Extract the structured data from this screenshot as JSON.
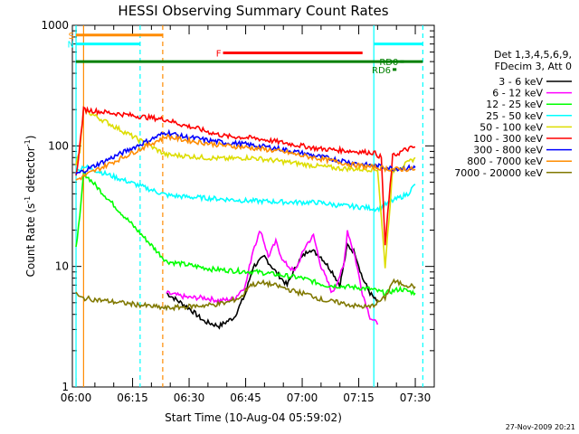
{
  "chart_data": {
    "type": "line",
    "title": "HESSI Observing Summary Count Rates",
    "xlabel": "Start Time (10-Aug-04 05:59:02)",
    "ylabel_main": "Count Rate (s",
    "ylabel_sup": "-1",
    "ylabel_mid": " detector",
    "ylabel_sup2": "-1",
    "ylabel_end": ")",
    "yscale": "log",
    "ylim": [
      1,
      1000
    ],
    "xlim": [
      "05:59:02",
      "07:35:00"
    ],
    "x_tick_labels": [
      "06:00",
      "06:15",
      "06:30",
      "06:45",
      "07:00",
      "07:15",
      "07:30"
    ],
    "x_tick_values_min": [
      0,
      15,
      30,
      45,
      60,
      75,
      90
    ],
    "y_tick_labels": [
      "1",
      "10",
      "100",
      "1000"
    ],
    "y_tick_values": [
      1,
      10,
      100,
      1000
    ],
    "legend_header": [
      "Det 1,3,4,5,6,9,",
      "FDecim 3, Att 0"
    ],
    "legend_position": "right",
    "footer": "27-Nov-2009 20:21",
    "series": [
      {
        "name": "3 - 6 keV",
        "color": "#000000",
        "points": [
          [
            24,
            6
          ],
          [
            30,
            4.5
          ],
          [
            34,
            3.5
          ],
          [
            38,
            3.2
          ],
          [
            42,
            3.8
          ],
          [
            45,
            6
          ],
          [
            47,
            10
          ],
          [
            50,
            12
          ],
          [
            53,
            9
          ],
          [
            56,
            7
          ],
          [
            59,
            11
          ],
          [
            62,
            14
          ],
          [
            65,
            12
          ],
          [
            68,
            9
          ],
          [
            70,
            7
          ],
          [
            72,
            15
          ],
          [
            74,
            13
          ],
          [
            76,
            8
          ],
          [
            78,
            6
          ],
          [
            80,
            5
          ]
        ]
      },
      {
        "name": "6 - 12 keV",
        "color": "#ff00ff",
        "points": [
          [
            24,
            6
          ],
          [
            30,
            5.5
          ],
          [
            34,
            5.5
          ],
          [
            38,
            5.2
          ],
          [
            42,
            5.4
          ],
          [
            45,
            7
          ],
          [
            47,
            14
          ],
          [
            49,
            20
          ],
          [
            51,
            12
          ],
          [
            53,
            16
          ],
          [
            55,
            11
          ],
          [
            58,
            9
          ],
          [
            61,
            15
          ],
          [
            63,
            18
          ],
          [
            65,
            10
          ],
          [
            68,
            6
          ],
          [
            71,
            10
          ],
          [
            72,
            20
          ],
          [
            74,
            12
          ],
          [
            76,
            6
          ],
          [
            78,
            3.8
          ],
          [
            80,
            3.3
          ]
        ]
      },
      {
        "name": "12 - 25 keV",
        "color": "#00ff00",
        "points": [
          [
            0,
            15
          ],
          [
            1,
            25
          ],
          [
            2,
            60
          ],
          [
            24,
            11
          ],
          [
            28,
            10.5
          ],
          [
            32,
            10
          ],
          [
            36,
            9.5
          ],
          [
            42,
            9.2
          ],
          [
            48,
            9
          ],
          [
            54,
            8.5
          ],
          [
            60,
            8
          ],
          [
            66,
            7
          ],
          [
            72,
            6.8
          ],
          [
            78,
            6.5
          ],
          [
            82,
            6
          ],
          [
            86,
            6.5
          ],
          [
            90,
            6
          ]
        ]
      },
      {
        "name": "25 - 50 keV",
        "color": "#00ffff",
        "points": [
          [
            0,
            60
          ],
          [
            2,
            68
          ],
          [
            24,
            39
          ],
          [
            28,
            38
          ],
          [
            34,
            37
          ],
          [
            40,
            36
          ],
          [
            46,
            35
          ],
          [
            52,
            34.5
          ],
          [
            58,
            34
          ],
          [
            64,
            34
          ],
          [
            70,
            32
          ],
          [
            76,
            31
          ],
          [
            80,
            30
          ],
          [
            84,
            35
          ],
          [
            88,
            40
          ],
          [
            90,
            48
          ]
        ]
      },
      {
        "name": "50 - 100 keV",
        "color": "#dddd00",
        "points": [
          [
            0,
            70
          ],
          [
            1,
            90
          ],
          [
            2,
            200
          ],
          [
            24,
            84
          ],
          [
            28,
            83
          ],
          [
            34,
            80
          ],
          [
            40,
            78
          ],
          [
            46,
            80
          ],
          [
            52,
            76
          ],
          [
            58,
            72
          ],
          [
            64,
            68
          ],
          [
            70,
            65
          ],
          [
            76,
            64
          ],
          [
            80,
            64
          ],
          [
            82,
            10
          ],
          [
            84,
            62
          ],
          [
            88,
            72
          ],
          [
            90,
            80
          ]
        ]
      },
      {
        "name": "100 - 300 keV",
        "color": "#ff0000",
        "points": [
          [
            0,
            55
          ],
          [
            1,
            100
          ],
          [
            2,
            200
          ],
          [
            24,
            165
          ],
          [
            28,
            150
          ],
          [
            32,
            140
          ],
          [
            36,
            128
          ],
          [
            40,
            120
          ],
          [
            44,
            118
          ],
          [
            48,
            115
          ],
          [
            52,
            110
          ],
          [
            56,
            105
          ],
          [
            60,
            100
          ],
          [
            64,
            95
          ],
          [
            70,
            92
          ],
          [
            76,
            89
          ],
          [
            79,
            88
          ],
          [
            81,
            80
          ],
          [
            82,
            15
          ],
          [
            84,
            82
          ],
          [
            87,
            92
          ],
          [
            90,
            98
          ]
        ]
      },
      {
        "name": "300 - 800 keV",
        "color": "#0000ff",
        "points": [
          [
            0,
            58
          ],
          [
            2,
            62
          ],
          [
            24,
            130
          ],
          [
            28,
            120
          ],
          [
            32,
            115
          ],
          [
            36,
            110
          ],
          [
            40,
            106
          ],
          [
            44,
            104
          ],
          [
            48,
            100
          ],
          [
            52,
            97
          ],
          [
            56,
            92
          ],
          [
            60,
            87
          ],
          [
            64,
            82
          ],
          [
            68,
            78
          ],
          [
            72,
            74
          ],
          [
            76,
            70
          ],
          [
            80,
            68
          ],
          [
            84,
            65
          ],
          [
            90,
            66
          ]
        ]
      },
      {
        "name": "800 - 7000 keV",
        "color": "#ff8c00",
        "points": [
          [
            0,
            52
          ],
          [
            2,
            56
          ],
          [
            24,
            120
          ],
          [
            28,
            113
          ],
          [
            32,
            108
          ],
          [
            36,
            104
          ],
          [
            40,
            100
          ],
          [
            44,
            98
          ],
          [
            48,
            95
          ],
          [
            52,
            92
          ],
          [
            56,
            88
          ],
          [
            60,
            83
          ],
          [
            64,
            79
          ],
          [
            68,
            75
          ],
          [
            72,
            71
          ],
          [
            76,
            68
          ],
          [
            80,
            66
          ],
          [
            84,
            64
          ],
          [
            90,
            64
          ]
        ]
      },
      {
        "name": "7000 - 20000 keV",
        "color": "#807800",
        "points": [
          [
            0,
            6
          ],
          [
            1,
            5.5
          ],
          [
            24,
            4.5
          ],
          [
            28,
            4.6
          ],
          [
            32,
            4.7
          ],
          [
            36,
            4.8
          ],
          [
            40,
            5
          ],
          [
            44,
            5.6
          ],
          [
            46,
            7
          ],
          [
            50,
            7.3
          ],
          [
            54,
            6.8
          ],
          [
            58,
            6.2
          ],
          [
            62,
            5.8
          ],
          [
            66,
            5.2
          ],
          [
            70,
            5
          ],
          [
            74,
            4.7
          ],
          [
            78,
            4.6
          ],
          [
            82,
            5.5
          ],
          [
            84,
            7.5
          ],
          [
            88,
            7
          ],
          [
            90,
            6.8
          ]
        ]
      }
    ],
    "flags": [
      {
        "label": "S",
        "color": "#ff8c00",
        "value": 830,
        "x_range": [
          0,
          23
        ]
      },
      {
        "label": "N",
        "color": "#00ffff",
        "value": 700,
        "x_range": [
          0,
          17
        ]
      },
      {
        "label": "",
        "color": "#00ffff",
        "value": 700,
        "x_range": [
          79,
          92
        ]
      },
      {
        "label": "F",
        "color": "#ff0000",
        "value": 590,
        "x_range": [
          39,
          76
        ]
      },
      {
        "label": "",
        "color": "#008000",
        "value": 500,
        "x_range": [
          0,
          92
        ]
      },
      {
        "label": "RD6",
        "color": "#008000",
        "value": 430,
        "x_range": [
          84,
          85
        ]
      },
      {
        "label": "RD0",
        "color": "#008000",
        "value": 500,
        "x_range": [
          86,
          87
        ]
      }
    ],
    "vlines": [
      {
        "x": 0,
        "color": "#00ffff",
        "style": "solid"
      },
      {
        "x": 2,
        "color": "#ff8c00",
        "style": "solid"
      },
      {
        "x": 17,
        "color": "#00ffff",
        "style": "dashed"
      },
      {
        "x": 23,
        "color": "#ff8c00",
        "style": "dashed"
      },
      {
        "x": 79,
        "color": "#00ffff",
        "style": "solid"
      },
      {
        "x": 92,
        "color": "#00ffff",
        "style": "dashed"
      }
    ]
  }
}
